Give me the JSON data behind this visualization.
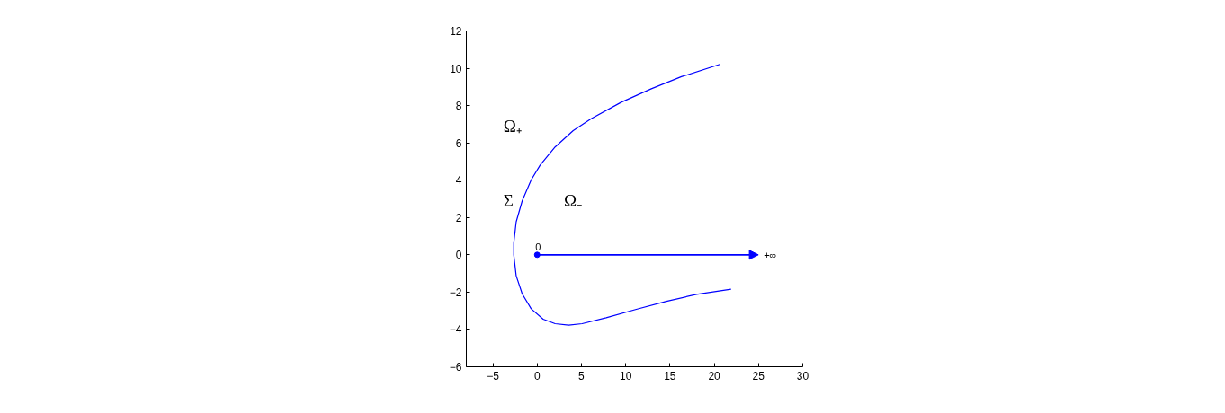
{
  "chart_data": {
    "type": "line",
    "xlim": [
      -8,
      30
    ],
    "ylim": [
      -6,
      12
    ],
    "xticks": [
      -5,
      0,
      5,
      10,
      15,
      20,
      25,
      30
    ],
    "yticks": [
      -6,
      -4,
      -2,
      0,
      2,
      4,
      6,
      8,
      10,
      12
    ],
    "grid": false,
    "series": [
      {
        "color": "#0000ff",
        "x": [
          20.7,
          16.3,
          12.9,
          9.5,
          6.1,
          4.07,
          2.03,
          0.34,
          -0.68,
          -1.69,
          -2.37,
          -2.64,
          -2.64,
          -2.37,
          -1.69,
          -0.68,
          0.68,
          2.03,
          3.56,
          5.08,
          7.8,
          11.2,
          14.6,
          18.0,
          21.9
        ],
        "values": [
          10.22,
          9.55,
          8.9,
          8.18,
          7.3,
          6.66,
          5.78,
          4.81,
          4.01,
          2.89,
          1.76,
          0.64,
          0,
          -1.12,
          -2.09,
          -2.89,
          -3.45,
          -3.69,
          -3.77,
          -3.69,
          -3.37,
          -2.92,
          -2.49,
          -2.12,
          -1.84
        ]
      },
      {
        "type": "scatter",
        "color": "#0000ff",
        "marker": "circle",
        "x": [
          0
        ],
        "values": [
          0
        ]
      }
    ],
    "annotations": [
      "Ω₊",
      "Σ",
      "Ω₋",
      {
        "text": "0",
        "x": 0,
        "y": 0
      },
      "+∞"
    ]
  }
}
